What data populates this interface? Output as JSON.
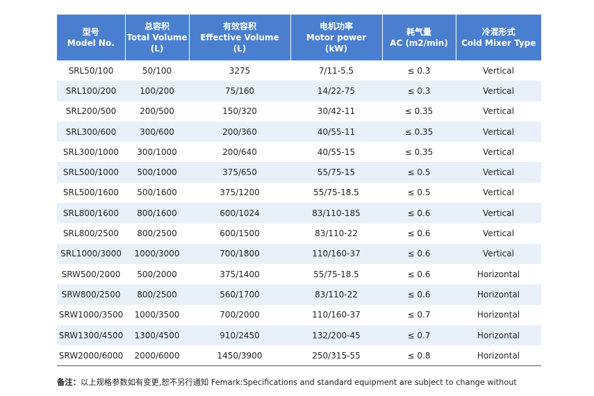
{
  "table": {
    "headers": [
      {
        "zh": "型号",
        "en": "Model No.",
        "unit": ""
      },
      {
        "zh": "总容积",
        "en": "Total Volume",
        "unit": "(L)"
      },
      {
        "zh": "有效容积",
        "en": "Effective Volume",
        "unit": "(L)"
      },
      {
        "zh": "电机功率",
        "en": "Motor power",
        "unit": "(kW)"
      },
      {
        "zh": "耗气量",
        "en": "AC (m2/min)",
        "unit": ""
      },
      {
        "zh": "冷混形式",
        "en": "Cold Mixer Type",
        "unit": ""
      }
    ],
    "rows": [
      [
        "SRL50/100",
        "50/100",
        "3275",
        "7/11-5.5",
        "≤ 0.3",
        "Vertical"
      ],
      [
        "SRL100/200",
        "100/200",
        "75/160",
        "14/22-75",
        "≤ 0.3",
        "Vertical"
      ],
      [
        "SRL200/500",
        "200/500",
        "150/320",
        "30/42-11",
        "≤ 0.35",
        "Vertical"
      ],
      [
        "SRL300/600",
        "300/600",
        "200/360",
        "40/55-11",
        "≤ 0.35",
        "Vertical"
      ],
      [
        "SRL300/1000",
        "300/1000",
        "200/640",
        "40/55-15",
        "≤ 0.35",
        "Vertical"
      ],
      [
        "SRL500/1000",
        "500/1000",
        "375/650",
        "55/75-15",
        "≤ 0.5",
        "Vertical"
      ],
      [
        "SRL500/1600",
        "500/1600",
        "375/1200",
        "55/75-18.5",
        "≤ 0.5",
        "Vertical"
      ],
      [
        "SRL800/1600",
        "800/1600",
        "600/1024",
        "83/110-185",
        "≤ 0.6",
        "Vertical"
      ],
      [
        "SRL800/2500",
        "800/2500",
        "600/1500",
        "83/110-22",
        "≤ 0.6",
        "Vertical"
      ],
      [
        "SRL1000/3000",
        "1000/3000",
        "700/1800",
        "110/160-37",
        "≤ 0.6",
        "Vertical"
      ],
      [
        "SRW500/2000",
        "500/2000",
        "375/1400",
        "55/75-18.5",
        "≤ 0.6",
        "Horizontal"
      ],
      [
        "SRW800/2500",
        "800/2500",
        "560/1700",
        "83/110-22",
        "≤ 0.6",
        "Horizontal"
      ],
      [
        "SRW1000/3500",
        "1000/3500",
        "700/2000",
        "110/160-37",
        "≤ 0.7",
        "Horizontal"
      ],
      [
        "SRW1300/4500",
        "1300/4500",
        "910/2450",
        "132/200-45",
        "≤ 0.7",
        "Horizontal"
      ],
      [
        "SRW2000/6000",
        "2000/6000",
        "1450/3900",
        "250/315-55",
        "≤ 0.8",
        "Horizontal"
      ]
    ]
  },
  "note": {
    "label": "备注：",
    "text": "以上规格参数如有变更,恕不另行通知 Femark:Specifications and standard equipment are subject to change without"
  }
}
